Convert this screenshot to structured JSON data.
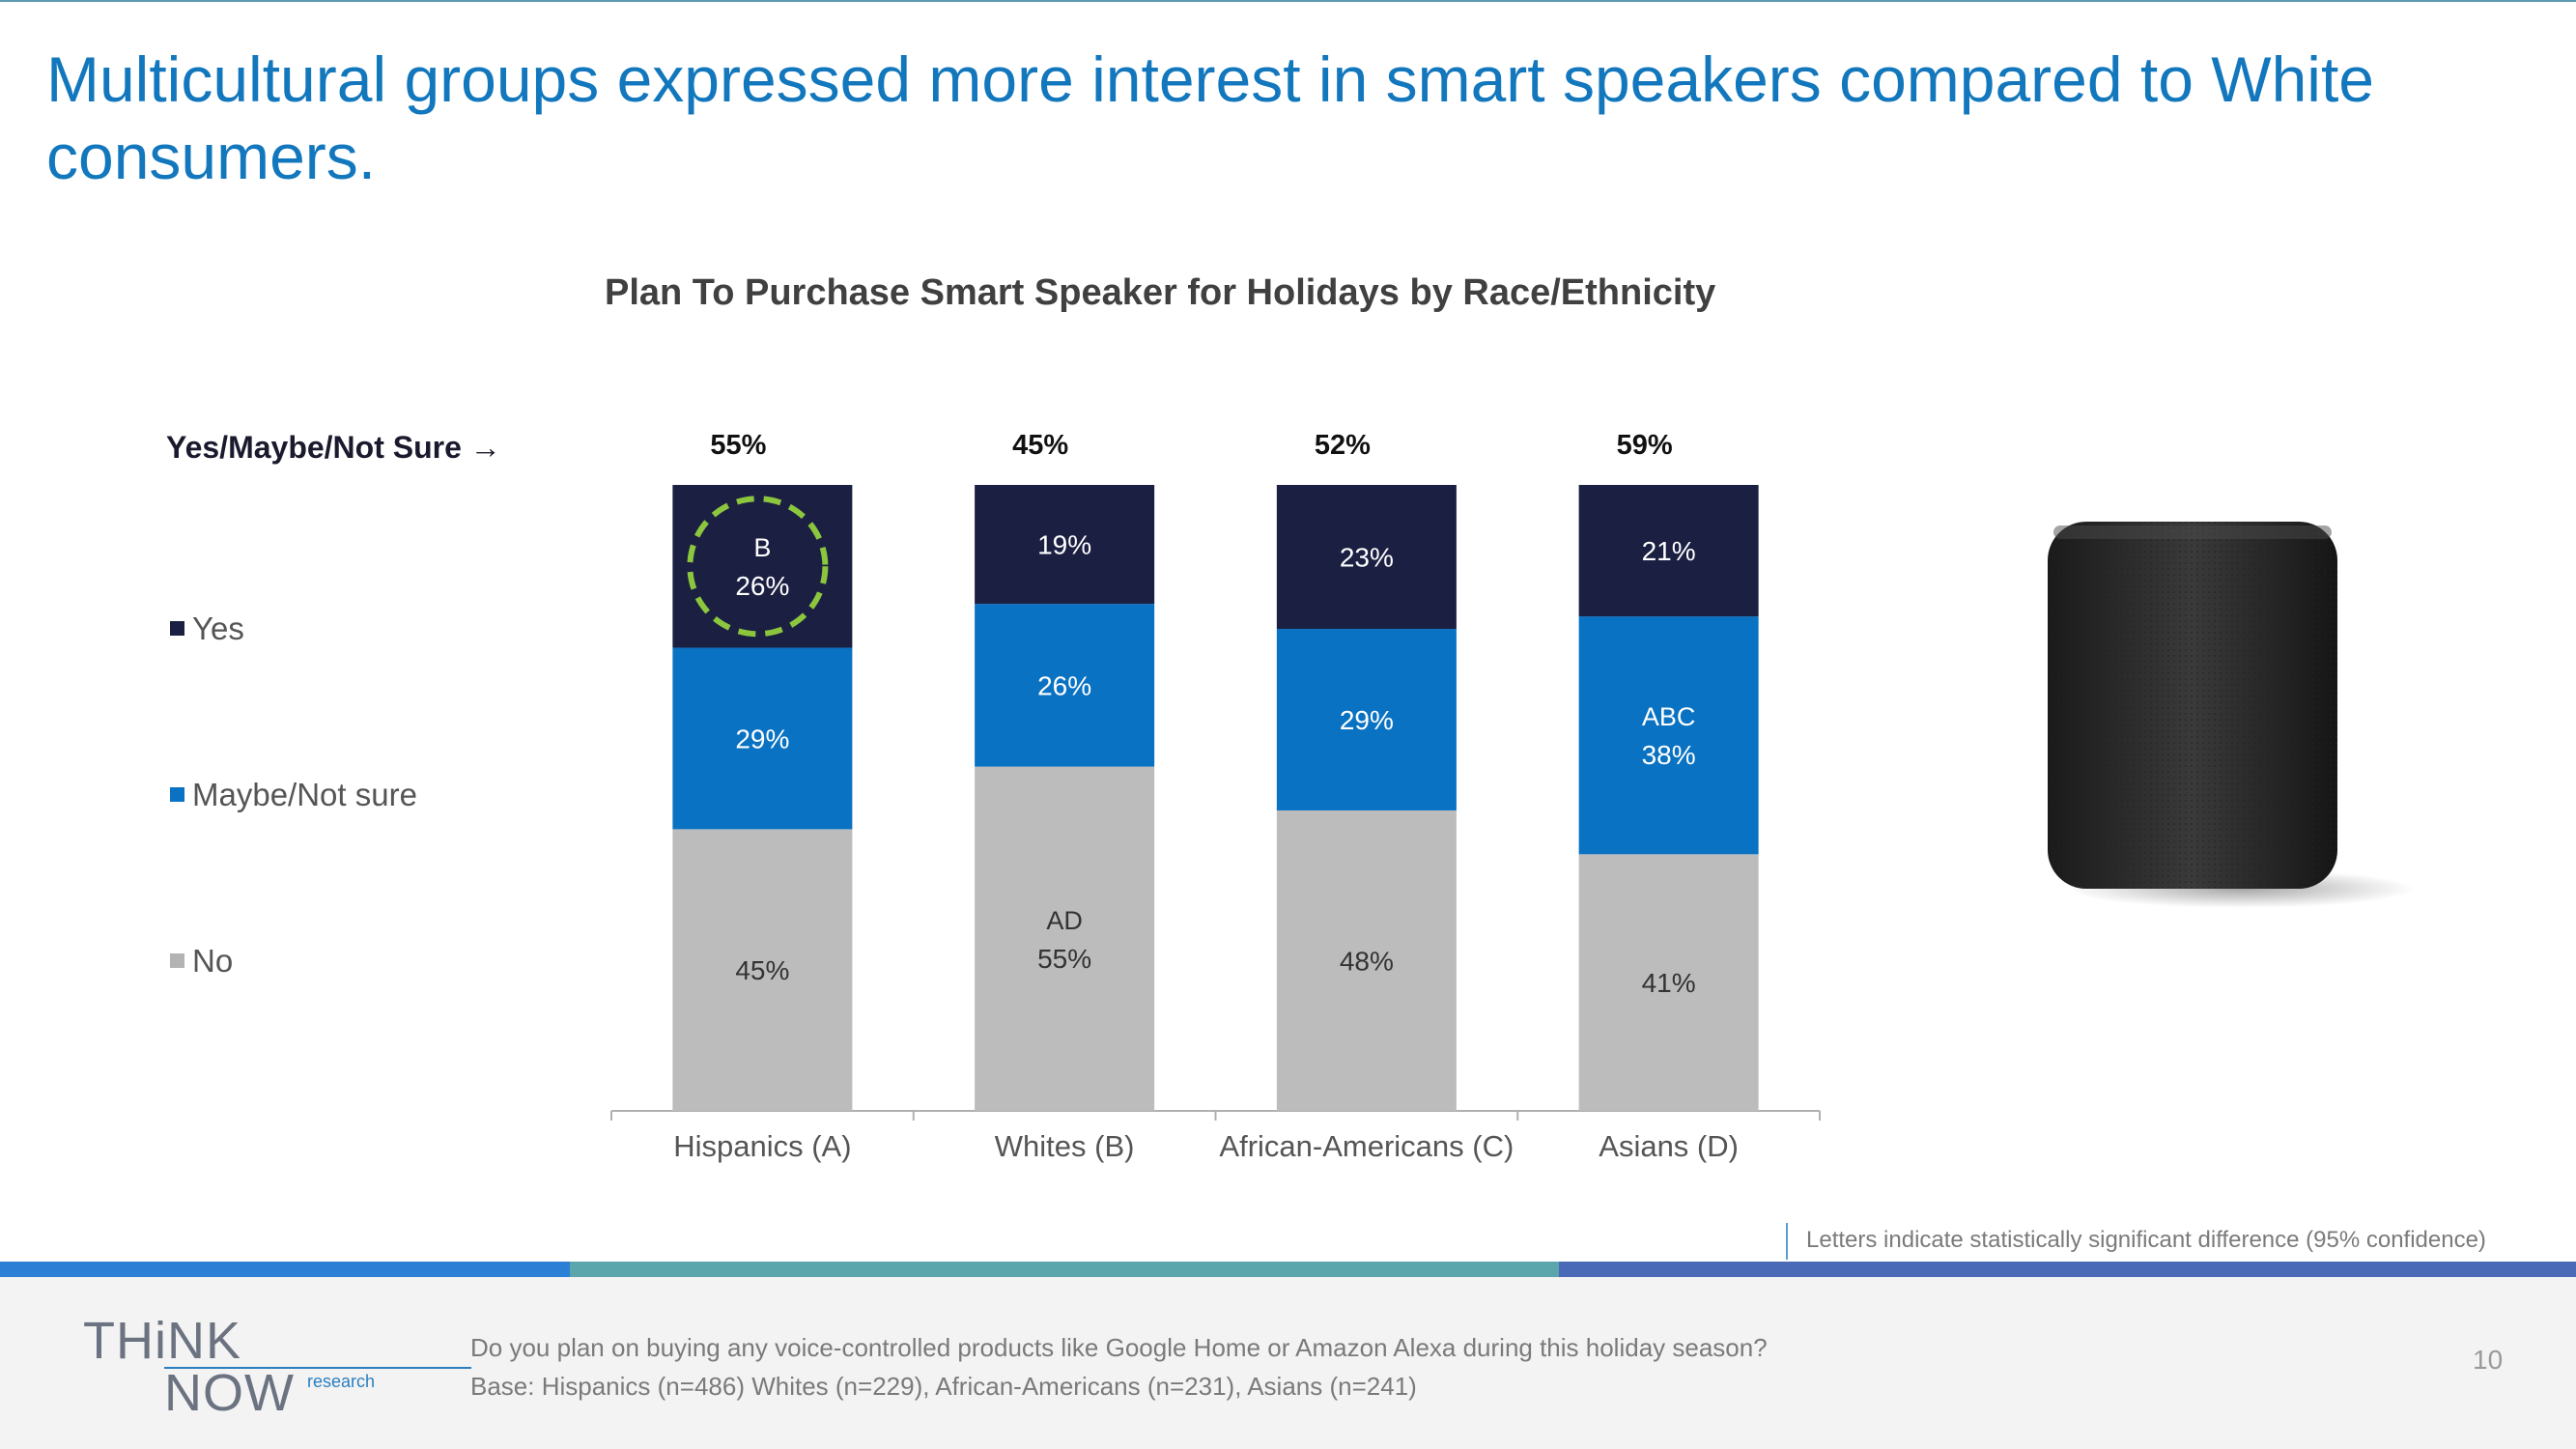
{
  "slide": {
    "title": "Multicultural groups expressed more interest in smart speakers compared to White consumers.",
    "note": "Letters indicate statistically significant difference (95% confidence)",
    "footer_question": "Do you plan on buying any voice-controlled products like Google Home or Amazon Alexa during this holiday season?",
    "footer_base": "Base: Hispanics (n=486) Whites (n=229), African-Americans (n=231), Asians (n=241)",
    "page_number": "10",
    "logo": {
      "think": "THiNK",
      "now": "NOW",
      "research": "research"
    }
  },
  "legend": {
    "header": "Yes/Maybe/Not Sure →",
    "yes": "Yes",
    "maybe": "Maybe/Not sure",
    "no": "No"
  },
  "colors": {
    "yes": "#1b1f42",
    "maybe": "#0a72c2",
    "no": "#bcbcbc",
    "title": "#1277bd",
    "highlight": "#8cc63f",
    "band1": "#2b7fd4",
    "band2": "#5ba6ad",
    "band3": "#4a69b6"
  },
  "chart_data": {
    "type": "bar",
    "stacked": true,
    "title": "Plan To Purchase Smart Speaker for Holidays by Race/Ethnicity",
    "categories": [
      "Hispanics (A)",
      "Whites (B)",
      "African-Americans (C)",
      "Asians (D)"
    ],
    "totals_label": [
      "55%",
      "45%",
      "52%",
      "59%"
    ],
    "series": [
      {
        "name": "No",
        "values": [
          45,
          55,
          48,
          41
        ],
        "sig_letters": [
          "",
          "AD",
          "",
          ""
        ]
      },
      {
        "name": "Maybe/Not sure",
        "values": [
          29,
          26,
          29,
          38
        ],
        "sig_letters": [
          "",
          "",
          "",
          "ABC"
        ]
      },
      {
        "name": "Yes",
        "values": [
          26,
          19,
          23,
          21
        ],
        "sig_letters": [
          "B",
          "",
          "",
          ""
        ]
      }
    ],
    "highlighted": {
      "series": "Yes",
      "category": "Hispanics (A)"
    },
    "ylim": [
      0,
      100
    ],
    "xlabel": "",
    "ylabel": ""
  }
}
